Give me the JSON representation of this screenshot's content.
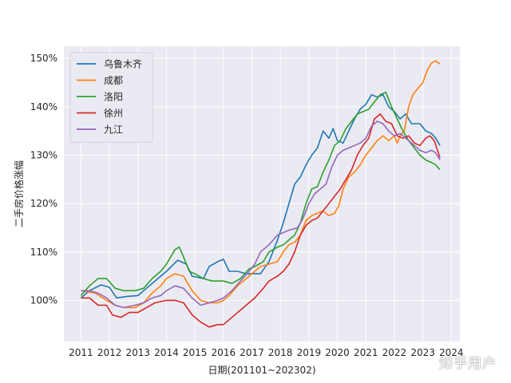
{
  "watermark": "知乎用户",
  "chart_data": {
    "type": "line",
    "title": "",
    "xlabel": "日期(201101~202302)",
    "ylabel": "二手房价格涨幅",
    "xlim": [
      2010.4,
      2024.3
    ],
    "ylim": [
      91.5,
      152.5
    ],
    "x_ticks": [
      2011,
      2012,
      2013,
      2014,
      2015,
      2016,
      2017,
      2018,
      2019,
      2020,
      2021,
      2022,
      2023,
      2024
    ],
    "y_ticks": [
      100,
      110,
      120,
      130,
      140,
      150
    ],
    "y_tick_format": "{v}%",
    "grid": true,
    "background": "#eaeaf2",
    "legend_position": "top-left",
    "series": [
      {
        "name": "乌鲁木齐",
        "color": "#1f77b4",
        "points": [
          [
            2011.0,
            100.5
          ],
          [
            2011.3,
            102.0
          ],
          [
            2011.7,
            103.2
          ],
          [
            2012.0,
            102.7
          ],
          [
            2012.25,
            100.5
          ],
          [
            2012.6,
            100.8
          ],
          [
            2013.0,
            101.0
          ],
          [
            2013.3,
            102.5
          ],
          [
            2013.7,
            104.5
          ],
          [
            2014.0,
            106.0
          ],
          [
            2014.4,
            108.3
          ],
          [
            2014.7,
            107.5
          ],
          [
            2014.9,
            105.0
          ],
          [
            2015.3,
            104.5
          ],
          [
            2015.5,
            107.0
          ],
          [
            2015.8,
            108.0
          ],
          [
            2016.0,
            108.5
          ],
          [
            2016.2,
            106.0
          ],
          [
            2016.5,
            106.0
          ],
          [
            2016.8,
            105.5
          ],
          [
            2017.0,
            105.5
          ],
          [
            2017.3,
            105.5
          ],
          [
            2017.6,
            108.0
          ],
          [
            2017.9,
            112.5
          ],
          [
            2018.1,
            116.0
          ],
          [
            2018.3,
            120.0
          ],
          [
            2018.5,
            124.0
          ],
          [
            2018.7,
            125.5
          ],
          [
            2018.9,
            128.0
          ],
          [
            2019.1,
            130.0
          ],
          [
            2019.3,
            131.5
          ],
          [
            2019.5,
            135.0
          ],
          [
            2019.7,
            133.5
          ],
          [
            2019.85,
            135.5
          ],
          [
            2020.0,
            133.0
          ],
          [
            2020.2,
            132.5
          ],
          [
            2020.4,
            135.0
          ],
          [
            2020.6,
            137.5
          ],
          [
            2020.8,
            139.5
          ],
          [
            2021.0,
            140.5
          ],
          [
            2021.2,
            142.5
          ],
          [
            2021.4,
            142.0
          ],
          [
            2021.6,
            142.5
          ],
          [
            2021.8,
            140.0
          ],
          [
            2022.0,
            139.0
          ],
          [
            2022.2,
            137.5
          ],
          [
            2022.4,
            138.5
          ],
          [
            2022.6,
            136.5
          ],
          [
            2022.9,
            136.5
          ],
          [
            2023.1,
            135.0
          ],
          [
            2023.3,
            134.5
          ],
          [
            2023.45,
            133.5
          ],
          [
            2023.6,
            132.0
          ]
        ]
      },
      {
        "name": "成都",
        "color": "#ff7f0e",
        "points": [
          [
            2011.0,
            102.0
          ],
          [
            2011.5,
            101.5
          ],
          [
            2011.9,
            100.0
          ],
          [
            2012.2,
            99.0
          ],
          [
            2012.5,
            98.5
          ],
          [
            2012.9,
            98.5
          ],
          [
            2013.2,
            99.5
          ],
          [
            2013.5,
            101.5
          ],
          [
            2013.8,
            103.0
          ],
          [
            2014.0,
            104.5
          ],
          [
            2014.3,
            105.5
          ],
          [
            2014.6,
            105.0
          ],
          [
            2014.9,
            102.0
          ],
          [
            2015.2,
            100.0
          ],
          [
            2015.5,
            99.5
          ],
          [
            2015.8,
            99.5
          ],
          [
            2016.0,
            100.0
          ],
          [
            2016.2,
            101.0
          ],
          [
            2016.5,
            103.0
          ],
          [
            2016.8,
            104.5
          ],
          [
            2017.0,
            105.5
          ],
          [
            2017.3,
            107.0
          ],
          [
            2017.6,
            107.5
          ],
          [
            2017.9,
            108.0
          ],
          [
            2018.1,
            110.0
          ],
          [
            2018.3,
            111.5
          ],
          [
            2018.5,
            112.0
          ],
          [
            2018.7,
            113.5
          ],
          [
            2018.9,
            116.5
          ],
          [
            2019.1,
            117.5
          ],
          [
            2019.3,
            118.0
          ],
          [
            2019.5,
            118.5
          ],
          [
            2019.7,
            117.5
          ],
          [
            2019.9,
            118.0
          ],
          [
            2020.05,
            119.5
          ],
          [
            2020.2,
            123.0
          ],
          [
            2020.4,
            125.5
          ],
          [
            2020.6,
            126.5
          ],
          [
            2020.8,
            128.0
          ],
          [
            2021.0,
            130.0
          ],
          [
            2021.2,
            131.5
          ],
          [
            2021.4,
            133.0
          ],
          [
            2021.6,
            134.0
          ],
          [
            2021.8,
            133.0
          ],
          [
            2022.0,
            134.0
          ],
          [
            2022.1,
            132.5
          ],
          [
            2022.2,
            134.0
          ],
          [
            2022.35,
            135.0
          ],
          [
            2022.5,
            140.0
          ],
          [
            2022.65,
            142.5
          ],
          [
            2022.85,
            144.0
          ],
          [
            2023.0,
            145.0
          ],
          [
            2023.15,
            147.5
          ],
          [
            2023.3,
            149.0
          ],
          [
            2023.45,
            149.5
          ],
          [
            2023.6,
            148.8
          ]
        ]
      },
      {
        "name": "洛阳",
        "color": "#2ca02c",
        "points": [
          [
            2011.0,
            101.0
          ],
          [
            2011.3,
            103.0
          ],
          [
            2011.6,
            104.5
          ],
          [
            2011.9,
            104.5
          ],
          [
            2012.2,
            102.5
          ],
          [
            2012.5,
            102.0
          ],
          [
            2012.9,
            102.0
          ],
          [
            2013.2,
            102.5
          ],
          [
            2013.5,
            104.5
          ],
          [
            2013.8,
            106.0
          ],
          [
            2014.0,
            107.5
          ],
          [
            2014.3,
            110.5
          ],
          [
            2014.45,
            111.0
          ],
          [
            2014.6,
            109.0
          ],
          [
            2014.8,
            106.0
          ],
          [
            2015.0,
            105.5
          ],
          [
            2015.3,
            104.5
          ],
          [
            2015.6,
            104.0
          ],
          [
            2016.0,
            104.0
          ],
          [
            2016.3,
            103.5
          ],
          [
            2016.6,
            104.5
          ],
          [
            2016.9,
            106.5
          ],
          [
            2017.1,
            107.0
          ],
          [
            2017.4,
            108.0
          ],
          [
            2017.6,
            110.0
          ],
          [
            2017.9,
            111.0
          ],
          [
            2018.1,
            111.5
          ],
          [
            2018.3,
            112.5
          ],
          [
            2018.5,
            113.5
          ],
          [
            2018.7,
            116.0
          ],
          [
            2018.9,
            120.0
          ],
          [
            2019.1,
            123.0
          ],
          [
            2019.3,
            123.5
          ],
          [
            2019.5,
            126.5
          ],
          [
            2019.7,
            129.0
          ],
          [
            2019.9,
            132.0
          ],
          [
            2020.1,
            133.0
          ],
          [
            2020.3,
            135.5
          ],
          [
            2020.5,
            137.0
          ],
          [
            2020.7,
            138.5
          ],
          [
            2020.9,
            139.0
          ],
          [
            2021.1,
            139.5
          ],
          [
            2021.3,
            141.0
          ],
          [
            2021.5,
            142.5
          ],
          [
            2021.7,
            143.0
          ],
          [
            2021.9,
            140.0
          ],
          [
            2022.1,
            137.5
          ],
          [
            2022.3,
            135.0
          ],
          [
            2022.5,
            133.0
          ],
          [
            2022.7,
            131.5
          ],
          [
            2022.9,
            130.0
          ],
          [
            2023.1,
            129.0
          ],
          [
            2023.3,
            128.5
          ],
          [
            2023.45,
            128.0
          ],
          [
            2023.6,
            127.0
          ]
        ]
      },
      {
        "name": "徐州",
        "color": "#d62728",
        "points": [
          [
            2011.0,
            100.5
          ],
          [
            2011.3,
            100.5
          ],
          [
            2011.6,
            99.0
          ],
          [
            2011.9,
            99.0
          ],
          [
            2012.1,
            97.0
          ],
          [
            2012.4,
            96.5
          ],
          [
            2012.7,
            97.5
          ],
          [
            2013.0,
            97.5
          ],
          [
            2013.3,
            98.5
          ],
          [
            2013.6,
            99.5
          ],
          [
            2014.0,
            100.0
          ],
          [
            2014.3,
            100.0
          ],
          [
            2014.6,
            99.5
          ],
          [
            2014.9,
            97.0
          ],
          [
            2015.2,
            95.5
          ],
          [
            2015.5,
            94.5
          ],
          [
            2015.8,
            95.0
          ],
          [
            2016.0,
            95.0
          ],
          [
            2016.3,
            96.5
          ],
          [
            2016.6,
            98.0
          ],
          [
            2016.9,
            99.5
          ],
          [
            2017.1,
            100.5
          ],
          [
            2017.4,
            102.5
          ],
          [
            2017.6,
            104.0
          ],
          [
            2017.9,
            105.0
          ],
          [
            2018.1,
            106.0
          ],
          [
            2018.3,
            107.5
          ],
          [
            2018.5,
            110.0
          ],
          [
            2018.7,
            113.5
          ],
          [
            2018.9,
            115.5
          ],
          [
            2019.1,
            116.5
          ],
          [
            2019.3,
            117.0
          ],
          [
            2019.5,
            118.5
          ],
          [
            2019.7,
            120.0
          ],
          [
            2019.9,
            121.5
          ],
          [
            2020.1,
            123.0
          ],
          [
            2020.3,
            125.0
          ],
          [
            2020.5,
            127.0
          ],
          [
            2020.7,
            130.0
          ],
          [
            2020.9,
            132.0
          ],
          [
            2021.1,
            133.5
          ],
          [
            2021.3,
            137.5
          ],
          [
            2021.5,
            138.5
          ],
          [
            2021.7,
            137.0
          ],
          [
            2021.9,
            136.5
          ],
          [
            2022.1,
            134.0
          ],
          [
            2022.3,
            133.5
          ],
          [
            2022.5,
            134.0
          ],
          [
            2022.7,
            132.5
          ],
          [
            2022.9,
            132.0
          ],
          [
            2023.1,
            133.5
          ],
          [
            2023.25,
            134.0
          ],
          [
            2023.4,
            133.0
          ],
          [
            2023.6,
            129.5
          ]
        ]
      },
      {
        "name": "九江",
        "color": "#9467bd",
        "points": [
          [
            2011.0,
            102.0
          ],
          [
            2011.3,
            102.0
          ],
          [
            2011.6,
            101.5
          ],
          [
            2011.9,
            100.5
          ],
          [
            2012.2,
            99.0
          ],
          [
            2012.5,
            98.5
          ],
          [
            2012.9,
            99.0
          ],
          [
            2013.2,
            99.5
          ],
          [
            2013.5,
            100.5
          ],
          [
            2013.8,
            101.0
          ],
          [
            2014.0,
            102.0
          ],
          [
            2014.3,
            103.0
          ],
          [
            2014.6,
            102.5
          ],
          [
            2014.9,
            100.5
          ],
          [
            2015.2,
            99.0
          ],
          [
            2015.5,
            99.5
          ],
          [
            2015.8,
            100.0
          ],
          [
            2016.0,
            100.5
          ],
          [
            2016.3,
            102.0
          ],
          [
            2016.6,
            104.0
          ],
          [
            2016.9,
            106.0
          ],
          [
            2017.1,
            107.5
          ],
          [
            2017.3,
            110.0
          ],
          [
            2017.6,
            111.5
          ],
          [
            2017.9,
            113.5
          ],
          [
            2018.1,
            114.0
          ],
          [
            2018.3,
            114.5
          ],
          [
            2018.6,
            115.0
          ],
          [
            2018.8,
            117.0
          ],
          [
            2019.0,
            120.0
          ],
          [
            2019.2,
            122.0
          ],
          [
            2019.4,
            123.0
          ],
          [
            2019.6,
            124.0
          ],
          [
            2019.8,
            127.5
          ],
          [
            2020.0,
            130.0
          ],
          [
            2020.2,
            131.0
          ],
          [
            2020.4,
            131.5
          ],
          [
            2020.6,
            132.0
          ],
          [
            2020.8,
            132.5
          ],
          [
            2021.0,
            133.5
          ],
          [
            2021.2,
            136.0
          ],
          [
            2021.4,
            137.0
          ],
          [
            2021.6,
            136.5
          ],
          [
            2021.8,
            135.0
          ],
          [
            2022.0,
            134.0
          ],
          [
            2022.2,
            134.5
          ],
          [
            2022.4,
            133.5
          ],
          [
            2022.6,
            132.5
          ],
          [
            2022.9,
            131.0
          ],
          [
            2023.1,
            130.5
          ],
          [
            2023.3,
            131.0
          ],
          [
            2023.45,
            130.5
          ],
          [
            2023.6,
            129.0
          ]
        ]
      }
    ]
  }
}
